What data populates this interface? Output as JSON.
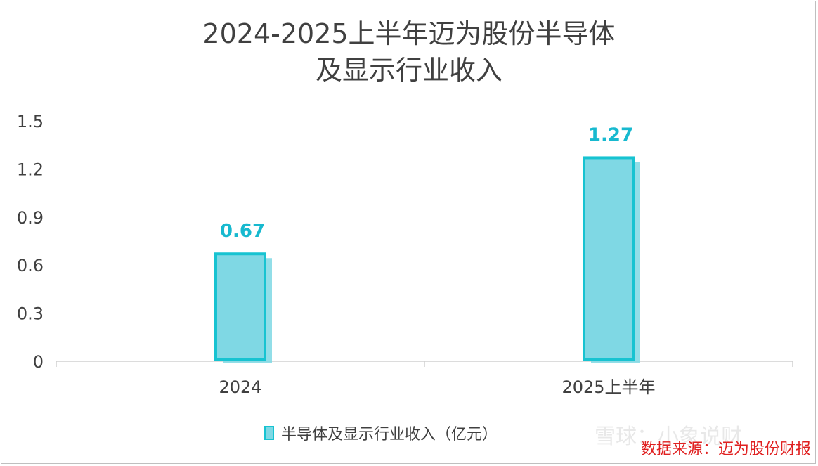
{
  "title": {
    "line1": "2024-2025上半年迈为股份半导体",
    "line2": "及显示行业收入"
  },
  "legend": {
    "label": "半导体及显示行业收入（亿元）"
  },
  "watermark": "雪球：小象说财",
  "source": "数据来源：迈为股份财报",
  "colors": {
    "bar_fill": "#7fd8e4",
    "bar_outline": "#17c3d1",
    "data_label": "#17b9cf",
    "source_text": "#e02020"
  },
  "chart_data": {
    "type": "bar",
    "title": "2024-2025上半年迈为股份半导体及显示行业收入",
    "categories": [
      "2024",
      "2025上半年"
    ],
    "series": [
      {
        "name": "半导体及显示行业收入（亿元）",
        "values": [
          0.67,
          1.27
        ]
      }
    ],
    "data_labels": [
      "0.67",
      "1.27"
    ],
    "yticks": [
      "0",
      "0.3",
      "0.6",
      "0.9",
      "1.2",
      "1.5"
    ],
    "ylim": [
      0,
      1.5
    ],
    "xlabel": "",
    "ylabel": "",
    "grid": false,
    "legend_position": "bottom"
  }
}
